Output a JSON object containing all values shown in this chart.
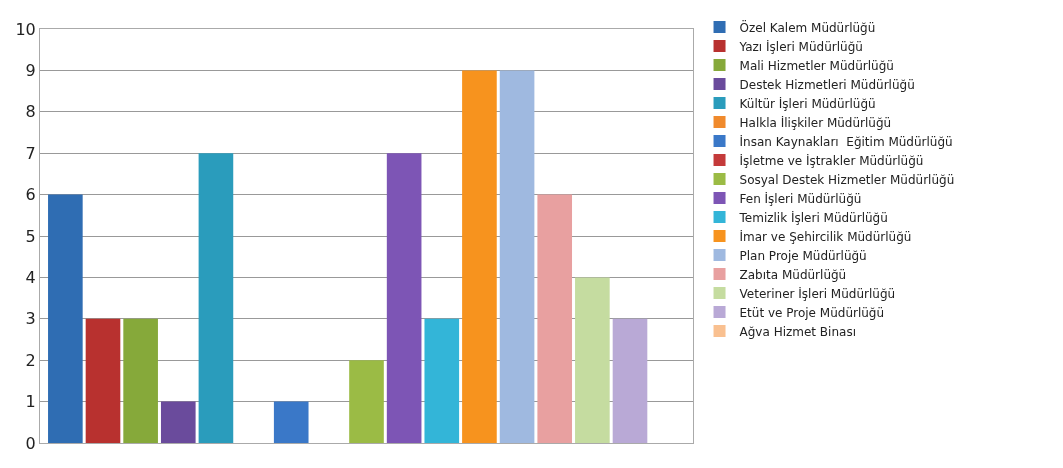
{
  "chart_data": {
    "type": "bar",
    "categories": [
      null
    ],
    "ylim": [
      0,
      10
    ],
    "yticks": [
      0,
      1,
      2,
      3,
      4,
      5,
      6,
      7,
      8,
      9,
      10
    ],
    "grid": "y",
    "legend": "right",
    "tick_labels": "y",
    "series": [
      {
        "name": "Özel Kalem Müdürlüğü",
        "color": "#2f6db3",
        "values": [
          6
        ]
      },
      {
        "name": "Yazı İşleri Müdürlüğü",
        "color": "#b8312f",
        "values": [
          3
        ]
      },
      {
        "name": "Mali Hizmetler Müdürlüğü",
        "color": "#86a93a",
        "values": [
          3
        ]
      },
      {
        "name": "Destek Hizmetleri Müdürlüğü",
        "color": "#6a4b9c",
        "values": [
          1
        ]
      },
      {
        "name": "Kültür İşleri Müdürlüğü",
        "color": "#2a9cbc",
        "values": [
          7
        ]
      },
      {
        "name": "Halkla İlişkiler Müdürlüğü",
        "color": "#f08a2c",
        "values": [
          0
        ]
      },
      {
        "name": "İnsan Kaynakları  Eğitim Müdürlüğü",
        "color": "#3a78c8",
        "values": [
          1
        ]
      },
      {
        "name": "İşletme ve İştrakler Müdürlüğü",
        "color": "#c43a3a",
        "values": [
          0
        ]
      },
      {
        "name": "Sosyal Destek Hizmetler Müdürlüğü",
        "color": "#9bbb45",
        "values": [
          2
        ]
      },
      {
        "name": "Fen İşleri Müdürlüğü",
        "color": "#7d55b5",
        "values": [
          7
        ]
      },
      {
        "name": "Temizlik İşleri Müdürlüğü",
        "color": "#33b5d8",
        "values": [
          3
        ]
      },
      {
        "name": "İmar ve Şehircilik Müdürlüğü",
        "color": "#f7931e",
        "values": [
          9
        ]
      },
      {
        "name": "Plan Proje Müdürlüğü",
        "color": "#9fb9e0",
        "values": [
          9
        ]
      },
      {
        "name": "Zabıta Müdürlüğü",
        "color": "#e8a0a0",
        "values": [
          6
        ]
      },
      {
        "name": "Veteriner İşleri Müdürlüğü",
        "color": "#c5dca0",
        "values": [
          4
        ]
      },
      {
        "name": "Etüt ve Proje Müdürlüğü",
        "color": "#b9a9d6",
        "values": [
          3
        ]
      },
      {
        "name": "Ağva Hizmet Binası",
        "color": "#f9c090",
        "values": [
          0
        ]
      }
    ]
  }
}
